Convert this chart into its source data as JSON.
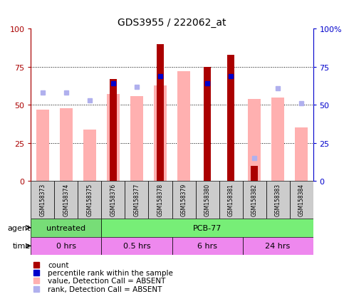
{
  "title": "GDS3955 / 222062_at",
  "samples": [
    "GSM158373",
    "GSM158374",
    "GSM158375",
    "GSM158376",
    "GSM158377",
    "GSM158378",
    "GSM158379",
    "GSM158380",
    "GSM158381",
    "GSM158382",
    "GSM158383",
    "GSM158384"
  ],
  "count_values": [
    0,
    0,
    0,
    67,
    0,
    90,
    0,
    75,
    83,
    10,
    0,
    0
  ],
  "percentile_rank": [
    null,
    null,
    null,
    64,
    null,
    69,
    null,
    64,
    69,
    null,
    null,
    null
  ],
  "absent_value": [
    47,
    48,
    34,
    57,
    56,
    63,
    72,
    null,
    null,
    54,
    55,
    35
  ],
  "absent_rank": [
    58,
    58,
    53,
    null,
    62,
    null,
    null,
    null,
    null,
    15,
    61,
    51
  ],
  "agent_groups": [
    {
      "label": "untreated",
      "start": 0,
      "end": 3,
      "color": "#77dd77"
    },
    {
      "label": "PCB-77",
      "start": 3,
      "end": 12,
      "color": "#77ee77"
    }
  ],
  "time_groups": [
    {
      "label": "0 hrs",
      "start": 0,
      "end": 3
    },
    {
      "label": "0.5 hrs",
      "start": 3,
      "end": 6
    },
    {
      "label": "6 hrs",
      "start": 6,
      "end": 9
    },
    {
      "label": "24 hrs",
      "start": 9,
      "end": 12
    }
  ],
  "ylim": [
    0,
    100
  ],
  "yticks": [
    0,
    25,
    50,
    75,
    100
  ],
  "color_count": "#aa0000",
  "color_rank": "#0000cc",
  "color_absent_value": "#ffb0b0",
  "color_absent_rank": "#b0b0ee",
  "color_time": "#ee88ee",
  "color_bg_sample": "#cccccc",
  "bar_width": 0.55,
  "narrow_bar_ratio": 0.5
}
